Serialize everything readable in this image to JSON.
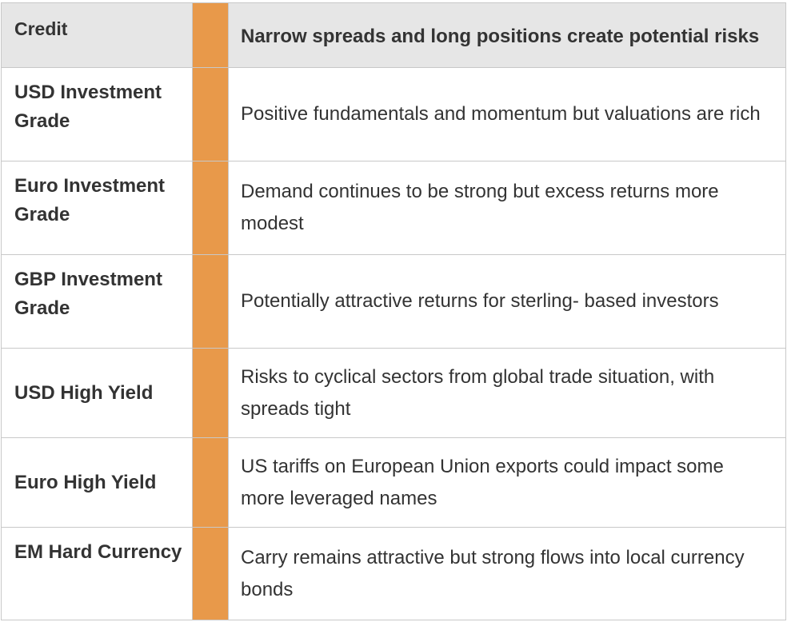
{
  "header": {
    "label": "Credit",
    "view": "Narrow spreads and long positions create potential risks"
  },
  "rows": [
    {
      "label": "USD Investment Grade",
      "view": "Positive fundamentals and momentum but valuations are rich"
    },
    {
      "label": "Euro Investment Grade",
      "view": "Demand continues to be strong but excess returns more modest"
    },
    {
      "label": "GBP Investment Grade",
      "view": "Potentially attractive returns for sterling- based investors"
    },
    {
      "label": "USD High Yield",
      "view": "Risks to cyclical sectors from global trade situation, with spreads tight"
    },
    {
      "label": "Euro High Yield",
      "view": "US tariffs on European Union exports could impact some more leveraged names"
    },
    {
      "label": "EM Hard Currency",
      "view": "Carry remains attractive but strong flows into local currency bonds"
    }
  ],
  "colors": {
    "indicator": "#e8994a",
    "header_bg": "#e6e6e6",
    "border": "#c8c8c8",
    "text": "#333333"
  }
}
